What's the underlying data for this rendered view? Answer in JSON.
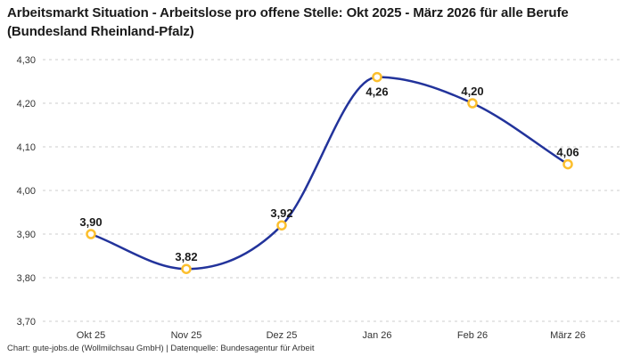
{
  "header": {
    "title": "Arbeitsmarkt Situation - Arbeitslose pro offene Stelle: Okt 2025 - März 2026 für alle Berufe (Bundesland Rheinland-Pfalz)"
  },
  "footer": {
    "credit": "Chart: gute-jobs.de (Wollmilchsau GmbH) | Datenquelle: Bundesagentur für Arbeit"
  },
  "chart_data": {
    "type": "line",
    "title": "Arbeitsmarkt Situation - Arbeitslose pro offene Stelle: Okt 2025 - März 2026 für alle Berufe (Bundesland Rheinland-Pfalz)",
    "categories": [
      "Okt 25",
      "Nov 25",
      "Dez 25",
      "Jan 26",
      "Feb 26",
      "März 26"
    ],
    "values": [
      3.9,
      3.82,
      3.92,
      4.26,
      4.2,
      4.06
    ],
    "value_labels": [
      "3,90",
      "3,82",
      "3,92",
      "4,26",
      "4,20",
      "4,06"
    ],
    "value_label_positions": [
      "above",
      "above",
      "above",
      "below",
      "above",
      "above"
    ],
    "yticks": [
      3.7,
      3.8,
      3.9,
      4.0,
      4.1,
      4.2,
      4.3
    ],
    "ytick_labels": [
      "3,70",
      "3,80",
      "3,90",
      "4,00",
      "4,10",
      "4,20",
      "4,30"
    ],
    "ylim": [
      3.7,
      4.3
    ],
    "xlabel": "",
    "ylabel": "",
    "legend": "none",
    "grid": "horizontal-dashed",
    "line_style": "smooth",
    "colors": {
      "line": "#22339b",
      "marker_stroke": "#fcbf2d",
      "marker_fill": "#ffffff",
      "grid": "#cccccc",
      "title_text": "#1a1a1a",
      "axis_text": "#333333",
      "label_text": "#1a1a1a"
    }
  }
}
